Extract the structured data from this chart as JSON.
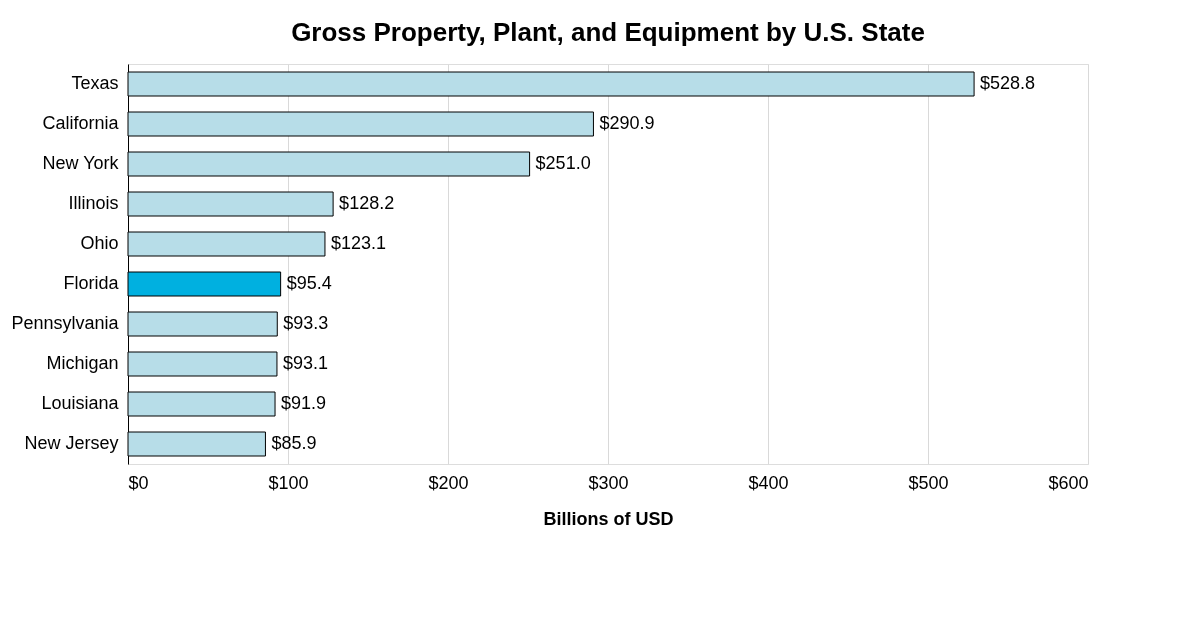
{
  "chart_data": {
    "type": "bar",
    "orientation": "horizontal",
    "title": "Gross Property, Plant, and Equipment by U.S. State",
    "xlabel": "Billions of USD",
    "categories": [
      "Texas",
      "California",
      "New York",
      "Illinois",
      "Ohio",
      "Florida",
      "Pennsylvania",
      "Michigan",
      "Louisiana",
      "New Jersey"
    ],
    "values": [
      528.8,
      290.9,
      251.0,
      128.2,
      123.1,
      95.4,
      93.3,
      93.1,
      91.9,
      85.9
    ],
    "colors": [
      "#b7dde8",
      "#b7dde8",
      "#b7dde8",
      "#b7dde8",
      "#b7dde8",
      "#00b0e0",
      "#b7dde8",
      "#b7dde8",
      "#b7dde8",
      "#b7dde8"
    ],
    "value_labels": [
      "$528.8",
      "$290.9",
      "$251.0",
      "$128.2",
      "$123.1",
      "$95.4",
      "$93.3",
      "$93.1",
      "$91.9",
      "$85.9"
    ],
    "xlim": [
      0,
      600
    ],
    "xticks": [
      {
        "value": 0,
        "label": "$0"
      },
      {
        "value": 100,
        "label": "$100"
      },
      {
        "value": 200,
        "label": "$200"
      },
      {
        "value": 300,
        "label": "$300"
      },
      {
        "value": 400,
        "label": "$400"
      },
      {
        "value": 500,
        "label": "$500"
      },
      {
        "value": 600,
        "label": "$600"
      }
    ],
    "grid": "x"
  }
}
